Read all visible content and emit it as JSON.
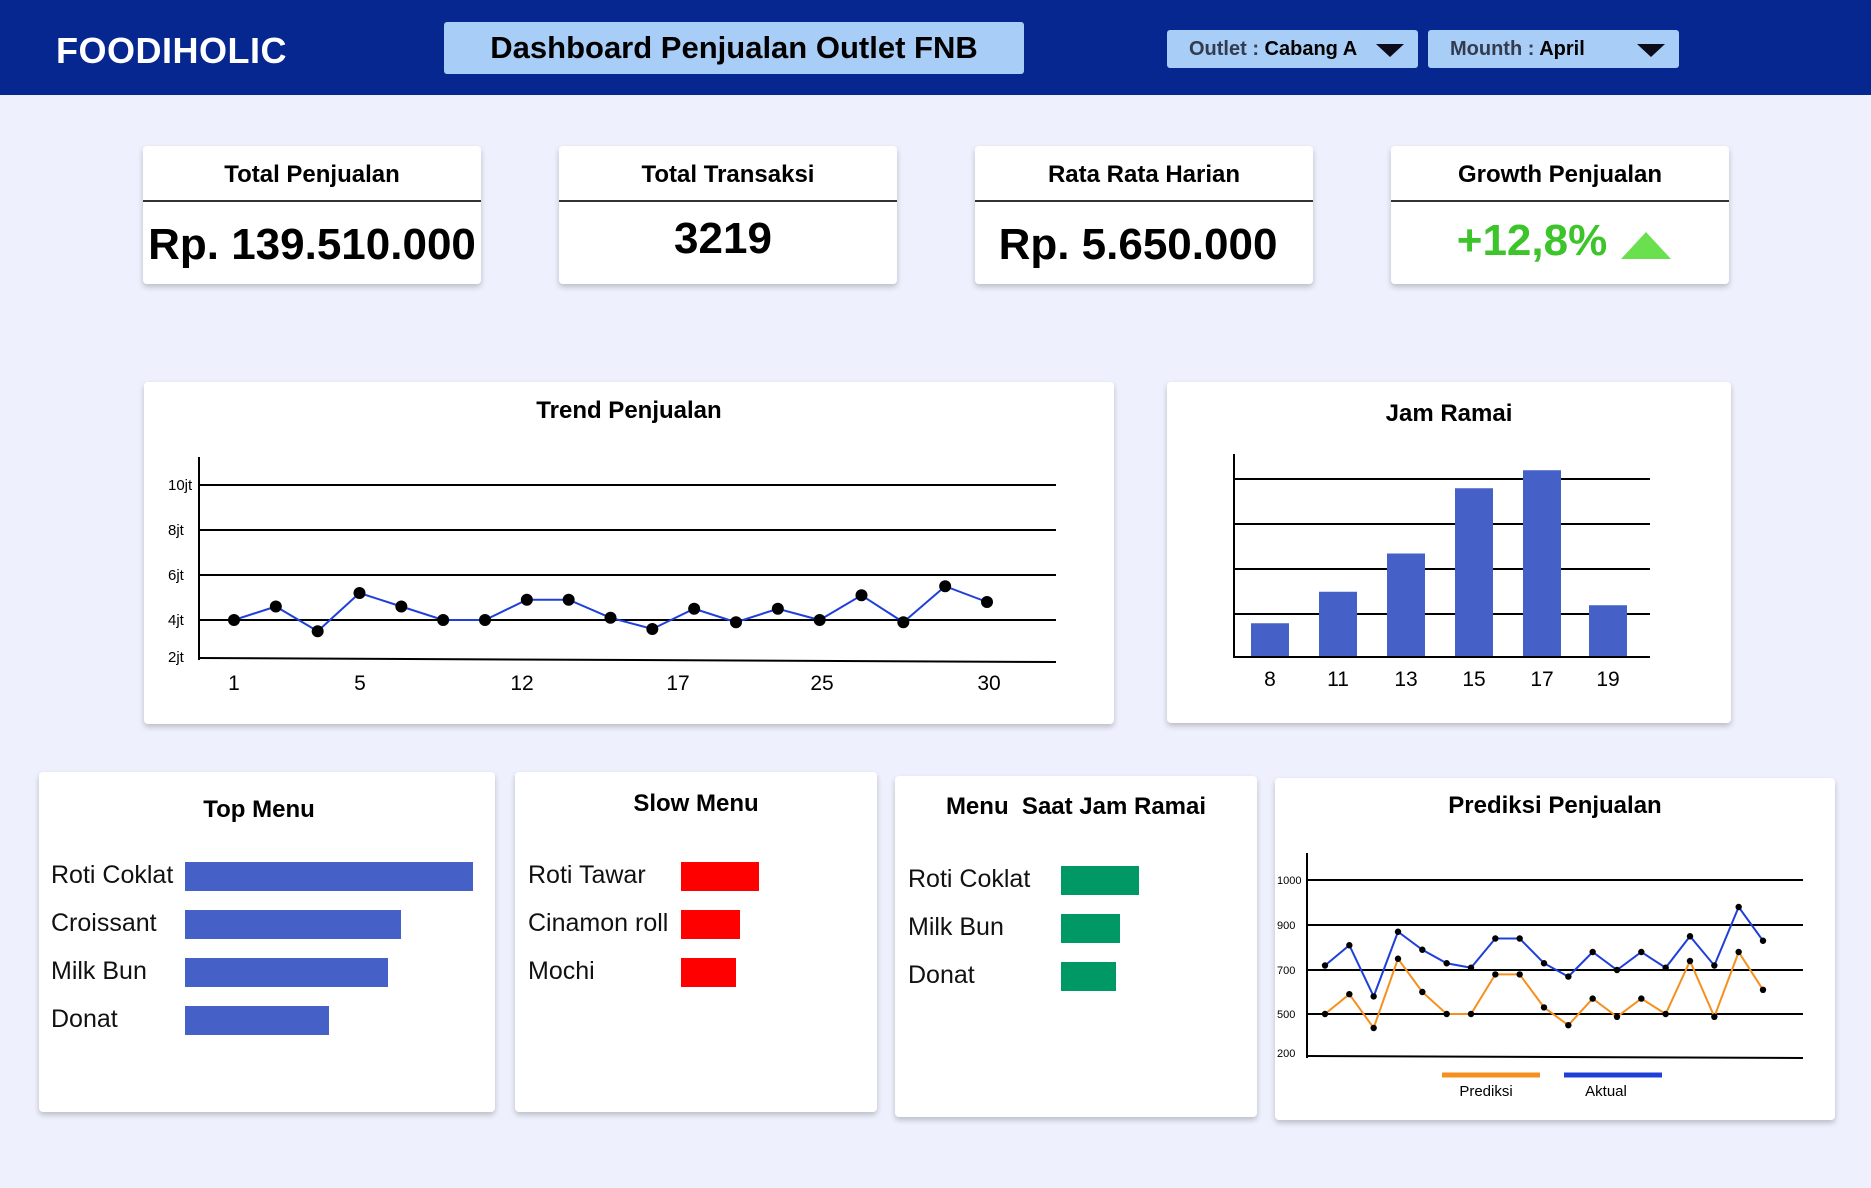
{
  "header": {
    "brand": "FOODIHOLIC",
    "title": "Dashboard Penjualan Outlet FNB",
    "outlet_label": "Outlet : ",
    "outlet_value": "Cabang A",
    "month_label": "Mounth : ",
    "month_value": "April"
  },
  "kpis": [
    {
      "title": "Total Penjualan",
      "value": "Rp. 139.510.000"
    },
    {
      "title": "Total Transaksi",
      "value": "3219"
    },
    {
      "title": "Rata Rata Harian",
      "value": "Rp. 5.650.000"
    },
    {
      "title": "Growth Penjualan",
      "value": "+12,8%"
    }
  ],
  "colors": {
    "header": "#072790",
    "accent_bar": "#4560c7",
    "slow": "#ff0000",
    "peak": "#009966",
    "growth": "#3cc42a",
    "trend_line": "#1f40d8",
    "prediksi": "#f5901e",
    "aktual": "#1f40d8"
  },
  "trend": {
    "title": "Trend Penjualan",
    "chart_data": {
      "type": "line",
      "y_ticks": [
        "10jt",
        "8jt",
        "6jt",
        "4jt",
        "2jt"
      ],
      "x_tick_labels": [
        "1",
        "5",
        "12",
        "17",
        "25",
        "30"
      ],
      "ylim_jt": [
        2,
        10
      ],
      "series": [
        {
          "values": [
            4.0,
            4.6,
            3.5,
            5.2,
            4.6,
            4.0,
            4.0,
            4.9,
            4.9,
            4.1,
            3.6,
            4.5,
            3.9,
            4.5,
            4.0,
            5.1,
            3.9,
            5.5,
            4.8
          ]
        }
      ]
    }
  },
  "jam_ramai": {
    "title": "Jam Ramai",
    "chart_data": {
      "type": "bar",
      "categories": [
        "8",
        "11",
        "13",
        "15",
        "17",
        "19"
      ],
      "values": [
        0.75,
        1.45,
        2.3,
        3.75,
        4.15,
        1.15
      ],
      "ylim": [
        0,
        4.5
      ]
    }
  },
  "top_menu": {
    "title": "Top Menu",
    "chart_data": {
      "type": "bar",
      "orientation": "horizontal",
      "categories": [
        "Roti Coklat",
        "Croissant",
        "Milk Bun",
        "Donat"
      ],
      "values": [
        100,
        75,
        70.5,
        50
      ]
    }
  },
  "slow_menu": {
    "title": "Slow Menu",
    "chart_data": {
      "type": "bar",
      "orientation": "horizontal",
      "categories": [
        "Roti Tawar",
        "Cinamon roll",
        "Mochi"
      ],
      "values": [
        100,
        75,
        70
      ]
    }
  },
  "peak_menu": {
    "title": "Menu  Saat Jam Ramai",
    "chart_data": {
      "type": "bar",
      "orientation": "horizontal",
      "categories": [
        "Roti Coklat",
        "Milk Bun",
        "Donat"
      ],
      "values": [
        100,
        75,
        70
      ]
    }
  },
  "prediksi": {
    "title": "Prediksi Penjualan",
    "chart_data": {
      "type": "line",
      "y_ticks": [
        "1000",
        "900",
        "700",
        "500",
        "200"
      ],
      "series": [
        {
          "name": "Aktual",
          "values": [
            720,
            810,
            580,
            870,
            790,
            730,
            710,
            840,
            840,
            730,
            670,
            780,
            700,
            780,
            710,
            850,
            720,
            940,
            830
          ]
        },
        {
          "name": "Prediksi",
          "values": [
            500,
            590,
            400,
            750,
            600,
            500,
            500,
            680,
            680,
            530,
            420,
            570,
            480,
            570,
            500,
            740,
            480,
            780,
            610
          ]
        }
      ]
    }
  }
}
